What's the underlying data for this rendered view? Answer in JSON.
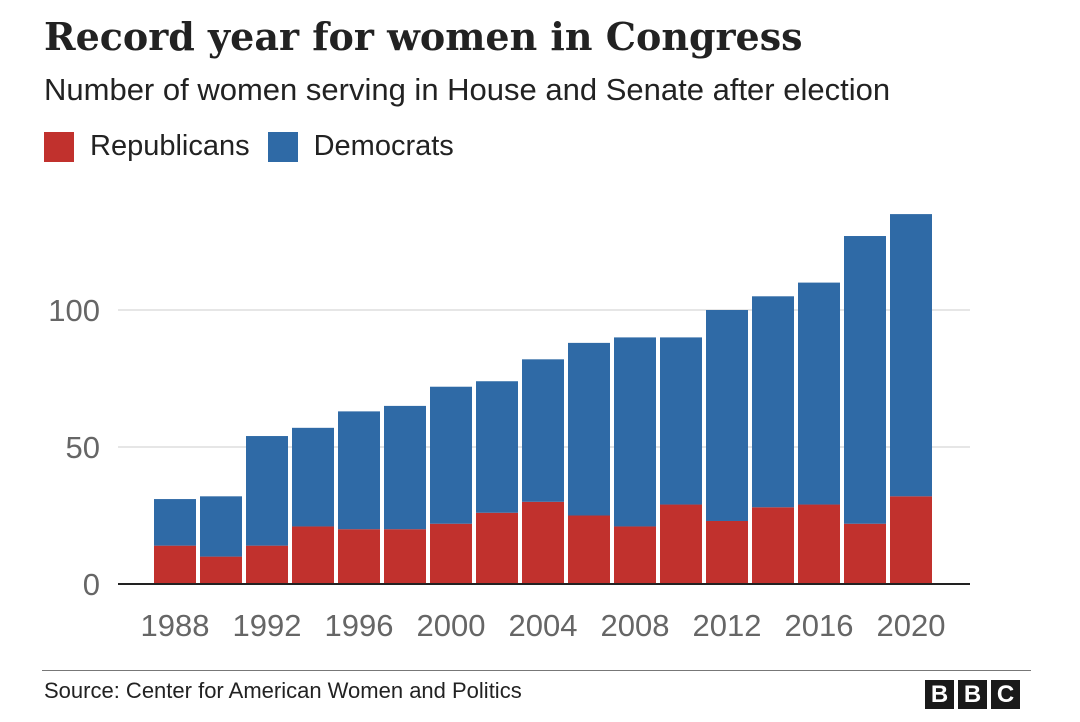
{
  "chart_data": {
    "type": "bar",
    "stacked": true,
    "title": "Record year for women in Congress",
    "subtitle": "Number of women serving in House and Senate after election",
    "xlabel": "",
    "ylabel": "",
    "ylim": [
      0,
      140
    ],
    "yticks": [
      0,
      50,
      100
    ],
    "categories": [
      "1988",
      "1990",
      "1992",
      "1994",
      "1996",
      "1998",
      "2000",
      "2002",
      "2004",
      "2006",
      "2008",
      "2010",
      "2012",
      "2014",
      "2016",
      "2018",
      "2020"
    ],
    "xtick_labels": [
      "1988",
      "1992",
      "1996",
      "2000",
      "2004",
      "2008",
      "2012",
      "2016",
      "2020"
    ],
    "series": [
      {
        "name": "Republicans",
        "color": "#c1312d",
        "values": [
          14,
          10,
          14,
          21,
          20,
          20,
          22,
          26,
          30,
          25,
          21,
          29,
          23,
          28,
          29,
          22,
          32
        ]
      },
      {
        "name": "Democrats",
        "color": "#2f6aa6",
        "values": [
          17,
          22,
          40,
          36,
          43,
          45,
          50,
          48,
          52,
          63,
          69,
          61,
          77,
          77,
          81,
          105,
          103
        ]
      }
    ],
    "grid": true,
    "legend": "top-left"
  },
  "footer": {
    "source": "Source: Center for American Women and Politics",
    "logo_letters": [
      "B",
      "B",
      "C"
    ]
  }
}
